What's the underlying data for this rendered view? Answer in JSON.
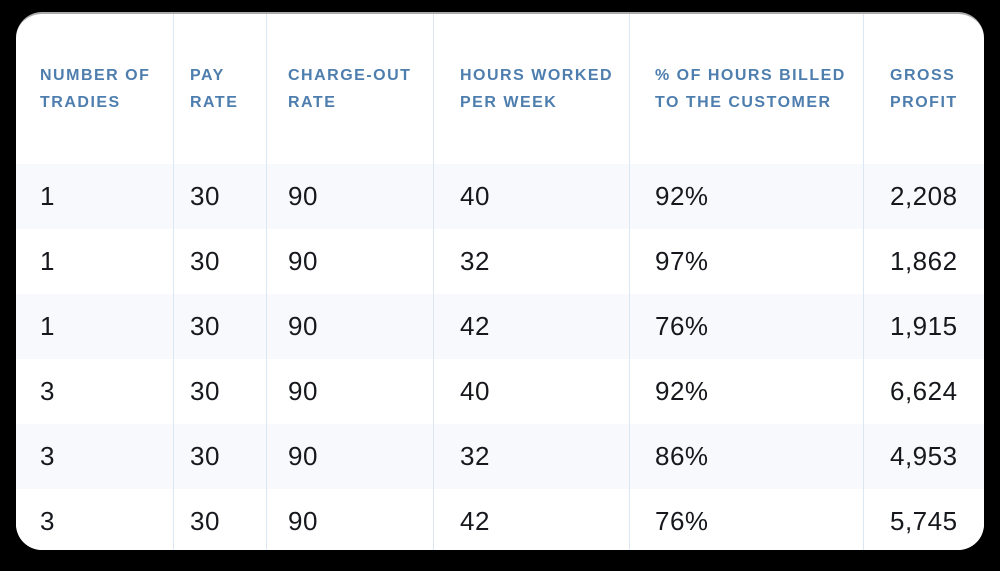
{
  "colors": {
    "page_background": "#000000",
    "card_background": "#ffffff",
    "card_top_edge": "#ababab",
    "header_text": "#4e7eae",
    "divider": "#dbe7f2",
    "alt_row_background": "#f7f9fc",
    "data_text": "#16181d"
  },
  "table": {
    "headers": [
      "NUMBER OF\nTRADIES",
      "PAY\nRATE",
      "CHARGE-OUT\nRATE",
      "HOURS WORKED\nPER WEEK",
      "% OF HOURS BILLED\nTO THE CUSTOMER",
      "GROSS\nPROFIT"
    ],
    "rows": [
      [
        "1",
        "30",
        "90",
        "40",
        "92%",
        "2,208"
      ],
      [
        "1",
        "30",
        "90",
        "32",
        "97%",
        "1,862"
      ],
      [
        "1",
        "30",
        "90",
        "42",
        "76%",
        "1,915"
      ],
      [
        "3",
        "30",
        "90",
        "40",
        "92%",
        "6,624"
      ],
      [
        "3",
        "30",
        "90",
        "32",
        "86%",
        "4,953"
      ],
      [
        "3",
        "30",
        "90",
        "42",
        "76%",
        "5,745"
      ]
    ]
  },
  "chart_data": {
    "type": "table",
    "title": "",
    "columns": [
      "NUMBER OF TRADIES",
      "PAY RATE",
      "CHARGE-OUT RATE",
      "HOURS WORKED PER WEEK",
      "% OF HOURS BILLED TO THE CUSTOMER",
      "GROSS PROFIT"
    ],
    "rows": [
      [
        1,
        30,
        90,
        40,
        "92%",
        2208
      ],
      [
        1,
        30,
        90,
        32,
        "97%",
        1862
      ],
      [
        1,
        30,
        90,
        42,
        "76%",
        1915
      ],
      [
        3,
        30,
        90,
        40,
        "92%",
        6624
      ],
      [
        3,
        30,
        90,
        32,
        "86%",
        4953
      ],
      [
        3,
        30,
        90,
        42,
        "76%",
        5745
      ]
    ]
  }
}
